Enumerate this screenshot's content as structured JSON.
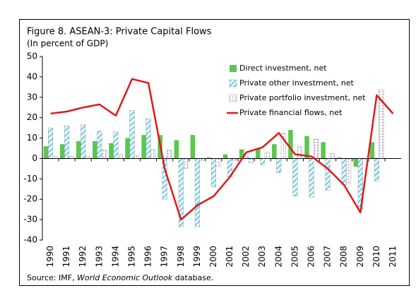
{
  "chart_data": {
    "type": "bar_line",
    "title": "Figure 8. ASEAN-3: Private Capital Flows",
    "subtitle": "(In percent of GDP)",
    "source": [
      "Source: IMF, ",
      "World Economic Outlook",
      " database."
    ],
    "categories": [
      "1990",
      "1991",
      "1992",
      "1993",
      "1994",
      "1995",
      "1996",
      "1997",
      "1998",
      "1999",
      "2000",
      "2001",
      "2002",
      "2003",
      "2004",
      "2005",
      "2006",
      "2007",
      "2008",
      "2009",
      "2010",
      "2011"
    ],
    "ylim": [
      -40,
      50
    ],
    "yticks": [
      -40,
      -30,
      -20,
      -10,
      0,
      10,
      20,
      30,
      40,
      50
    ],
    "legend": "upper right",
    "series": [
      {
        "name": "Direct investment, net",
        "kind": "bar",
        "fill": "solid",
        "color": "#5cc64f",
        "values": [
          6,
          7,
          8.5,
          8.5,
          7.5,
          10,
          11.5,
          11.5,
          9,
          11.5,
          0.5,
          2,
          4.5,
          5,
          7,
          14,
          11,
          8,
          0.5,
          -4,
          8,
          null
        ]
      },
      {
        "name": "Private other investment, net",
        "kind": "bar",
        "fill": "stripes",
        "color": "#7dd3e8",
        "values": [
          15,
          16,
          16.5,
          13.5,
          13,
          23.5,
          19.5,
          -20,
          -33.5,
          -33.5,
          -14,
          -9,
          1,
          -3,
          -7,
          -18.5,
          -19,
          -15.5,
          -13,
          -25,
          -11,
          null
        ]
      },
      {
        "name": "Private portfolio investment, net",
        "kind": "bar",
        "fill": "dots",
        "color": "#8b6aa3",
        "values": [
          1,
          1,
          1,
          4,
          2,
          1.5,
          4.5,
          4,
          -5,
          -1,
          -4,
          -1,
          -2,
          3,
          12.5,
          6,
          9.5,
          2.5,
          -12,
          -1.5,
          34,
          null
        ]
      },
      {
        "name": "Private financial flows, net",
        "kind": "line",
        "color": "#e0191c",
        "values": [
          22,
          23,
          25,
          26.5,
          21,
          39,
          37,
          -5,
          -30,
          -23,
          -18.5,
          -9,
          3,
          5.5,
          12.5,
          2,
          1,
          -5,
          -13,
          -26.5,
          31,
          22
        ]
      }
    ]
  }
}
